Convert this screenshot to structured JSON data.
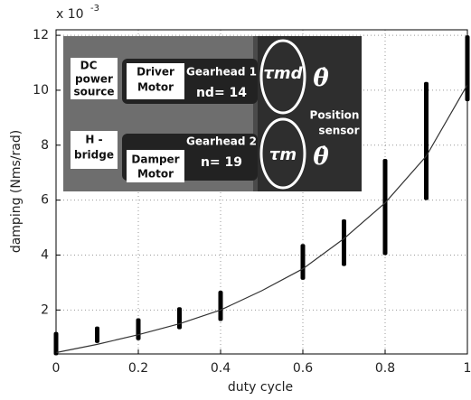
{
  "chart_data": {
    "type": "scatter",
    "multiplier_base": "x 10",
    "multiplier_exponent": "-3",
    "xlabel": "duty cycle",
    "ylabel": "damping (Nms/rad)",
    "xlim": [
      0,
      1
    ],
    "ylim": [
      0.4,
      12.2
    ],
    "xticks": [
      0,
      0.2,
      0.4,
      0.6,
      0.8,
      1
    ],
    "yticks": [
      2,
      4,
      6,
      8,
      10,
      12
    ],
    "grid": true,
    "ranges": {
      "color": "#000000",
      "x": [
        0,
        0.1,
        0.2,
        0.3,
        0.4,
        0.6,
        0.7,
        0.8,
        0.9,
        1
      ],
      "low": [
        0.35,
        0.8,
        0.9,
        1.3,
        1.6,
        3.1,
        3.6,
        4.0,
        6.0,
        9.6
      ],
      "high": [
        1.2,
        1.4,
        1.7,
        2.1,
        2.7,
        4.4,
        5.3,
        7.5,
        10.3,
        12.0
      ]
    },
    "fit": {
      "color": "#333333",
      "x": [
        0,
        0.1,
        0.2,
        0.3,
        0.4,
        0.5,
        0.6,
        0.7,
        0.8,
        0.9,
        1
      ],
      "values": [
        0.45,
        0.75,
        1.1,
        1.5,
        2.0,
        2.7,
        3.5,
        4.6,
        5.9,
        7.6,
        10.2
      ]
    },
    "inset": {
      "dc": [
        "DC",
        "power",
        "source"
      ],
      "driver": [
        "Driver",
        "Motor"
      ],
      "gearhead1": "Gearhead 1",
      "nd": "nd= 14",
      "hbridge": [
        "H -",
        "bridge"
      ],
      "damper": [
        "Damper",
        "Motor"
      ],
      "gearhead2": "Gearhead 2",
      "n": "n= 19",
      "sensor": [
        "Position",
        "sensor"
      ],
      "tau_md": "τmd",
      "tau_m": "τm",
      "theta_dot": "θ̇"
    }
  }
}
